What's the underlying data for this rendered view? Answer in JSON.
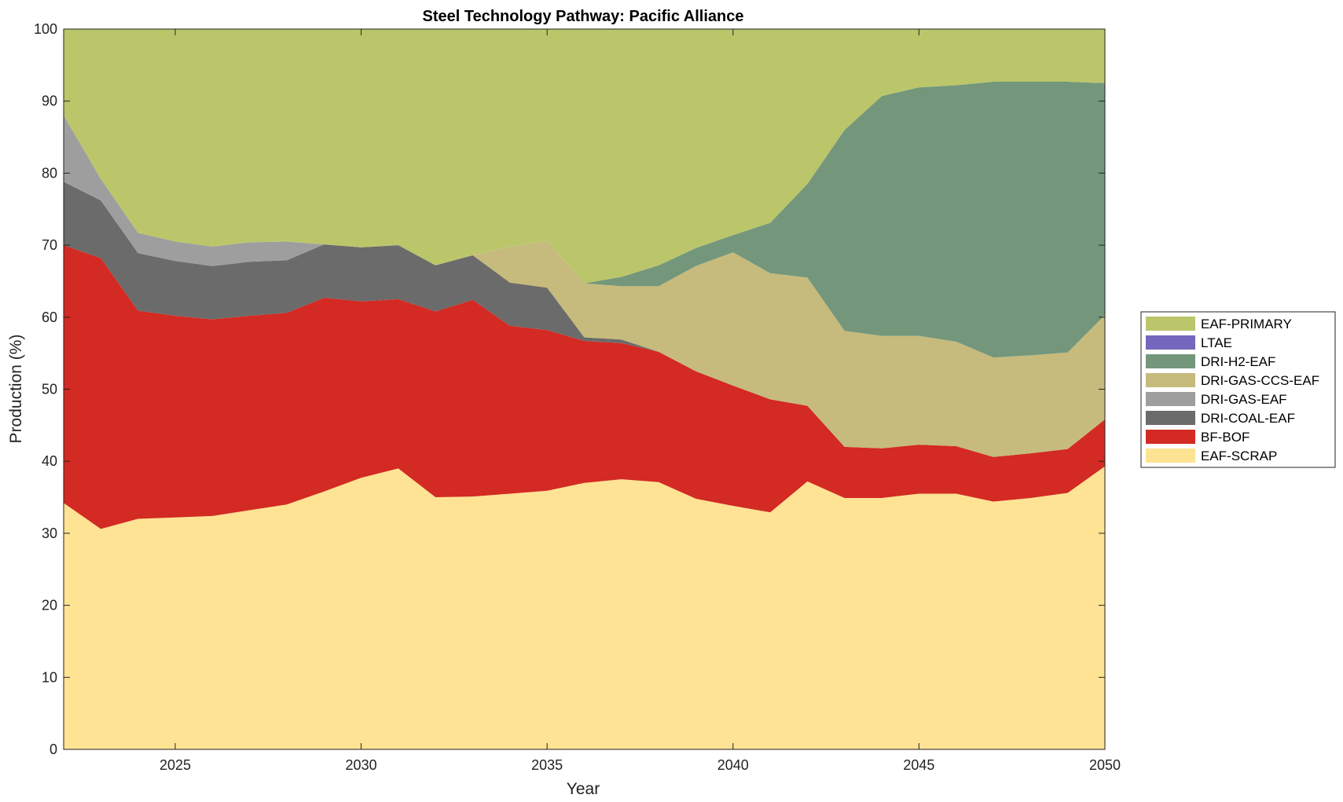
{
  "chart_data": {
    "type": "area",
    "stacked": true,
    "title": "Steel Technology Pathway: Pacific Alliance",
    "xlabel": "Year",
    "ylabel": "Production (%)",
    "xlim": [
      2022,
      2050
    ],
    "ylim": [
      0,
      100
    ],
    "xticks": [
      2025,
      2030,
      2035,
      2040,
      2045,
      2050
    ],
    "yticks": [
      0,
      10,
      20,
      30,
      40,
      50,
      60,
      70,
      80,
      90,
      100
    ],
    "grid": false,
    "legend_position": "right",
    "x": [
      2022,
      2023,
      2024,
      2025,
      2026,
      2027,
      2028,
      2029,
      2030,
      2031,
      2032,
      2033,
      2034,
      2035,
      2036,
      2037,
      2038,
      2039,
      2040,
      2041,
      2042,
      2043,
      2044,
      2045,
      2046,
      2047,
      2048,
      2049,
      2050
    ],
    "series": [
      {
        "name": "EAF-SCRAP",
        "color": "#fde393",
        "values": [
          34.2,
          30.6,
          32.0,
          32.2,
          32.4,
          33.2,
          34.0,
          35.8,
          37.7,
          39.0,
          35.0,
          35.1,
          35.5,
          35.9,
          37.0,
          37.5,
          37.1,
          34.8,
          33.8,
          32.9,
          37.2,
          34.9,
          34.9,
          35.5,
          35.5,
          34.4,
          34.9,
          35.6,
          39.3
        ]
      },
      {
        "name": "BF-BOF",
        "color": "#d32a23",
        "values": [
          35.8,
          37.6,
          28.9,
          28.0,
          27.3,
          27.0,
          26.6,
          26.9,
          24.5,
          23.5,
          25.8,
          27.3,
          23.3,
          22.3,
          19.7,
          18.9,
          18.1,
          17.7,
          16.7,
          15.7,
          10.5,
          7.1,
          6.9,
          6.8,
          6.6,
          6.2,
          6.2,
          6.1,
          6.5
        ]
      },
      {
        "name": "DRI-COAL-EAF",
        "color": "#6b6b6b",
        "values": [
          8.8,
          8.0,
          8.0,
          7.6,
          7.4,
          7.5,
          7.3,
          7.4,
          7.5,
          7.5,
          6.4,
          6.2,
          6.0,
          5.9,
          0.5,
          0.5,
          0.0,
          0.0,
          0.0,
          0.0,
          0.0,
          0.0,
          0.0,
          0.0,
          0.0,
          0.0,
          0.0,
          0.0,
          0.0
        ]
      },
      {
        "name": "DRI-GAS-EAF",
        "color": "#9e9e9e",
        "values": [
          9.2,
          3.0,
          2.8,
          2.7,
          2.7,
          2.7,
          2.6,
          0.0,
          0.0,
          0.0,
          0.0,
          0.0,
          0.0,
          0.0,
          0.0,
          0.0,
          0.0,
          0.0,
          0.0,
          0.0,
          0.0,
          0.0,
          0.0,
          0.0,
          0.0,
          0.0,
          0.0,
          0.0,
          0.0
        ]
      },
      {
        "name": "DRI-GAS-CCS-EAF",
        "color": "#c6bb7c",
        "values": [
          0.0,
          0.0,
          0.0,
          0.0,
          0.0,
          0.0,
          0.0,
          0.0,
          0.0,
          0.0,
          0.0,
          0.0,
          5.0,
          6.5,
          7.5,
          7.4,
          9.1,
          14.6,
          18.5,
          17.5,
          17.8,
          16.1,
          15.6,
          15.1,
          14.5,
          13.8,
          13.6,
          13.4,
          14.5
        ]
      },
      {
        "name": "DRI-H2-EAF",
        "color": "#74977c",
        "values": [
          0.0,
          0.0,
          0.0,
          0.0,
          0.0,
          0.0,
          0.0,
          0.0,
          0.0,
          0.0,
          0.0,
          0.0,
          0.0,
          0.0,
          0.0,
          1.3,
          2.9,
          2.5,
          2.4,
          7.0,
          13.0,
          27.9,
          33.3,
          34.5,
          35.6,
          38.3,
          38.0,
          37.6,
          32.2
        ]
      },
      {
        "name": "LTAE",
        "color": "#7567bd",
        "values": [
          0,
          0,
          0,
          0,
          0,
          0,
          0,
          0,
          0,
          0,
          0,
          0,
          0,
          0,
          0,
          0,
          0,
          0,
          0,
          0,
          0,
          0,
          0,
          0,
          0,
          0,
          0,
          0,
          0
        ]
      },
      {
        "name": "EAF-PRIMARY",
        "color": "#bbc66b",
        "values": [
          12.0,
          20.8,
          28.3,
          29.5,
          30.2,
          29.6,
          29.5,
          29.9,
          30.3,
          30.0,
          32.8,
          31.4,
          30.2,
          29.4,
          35.3,
          34.4,
          32.8,
          30.4,
          28.6,
          26.9,
          21.5,
          14.0,
          9.3,
          8.1,
          7.8,
          7.3,
          7.3,
          7.3,
          7.5
        ]
      }
    ]
  }
}
